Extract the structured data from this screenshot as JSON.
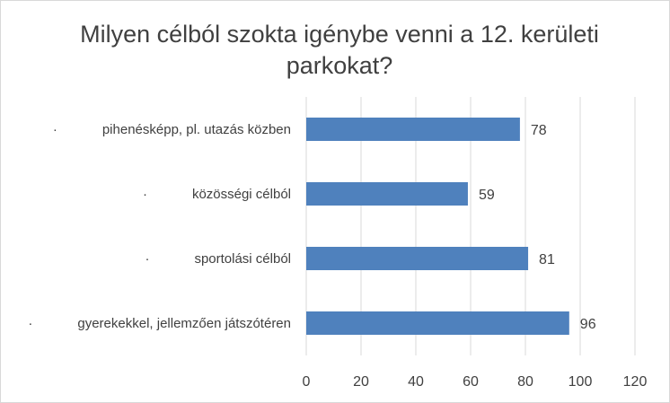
{
  "chart_data": {
    "type": "bar",
    "orientation": "horizontal",
    "title_lines": [
      "Milyen célból szokta igénybe venni a 12. kerületi",
      "parkokat?"
    ],
    "categories": [
      "pihenésképp, pl. utazás közben",
      "közösségi célból",
      "sportolási célból",
      "gyerekekkel, jellemzően játszótéren"
    ],
    "bullet": "·",
    "values": [
      78,
      59,
      81,
      96
    ],
    "data_labels": [
      "78",
      "59",
      "81",
      "96"
    ],
    "xlim": [
      0,
      120
    ],
    "xticks": [
      "0",
      "20",
      "40",
      "60",
      "80",
      "100",
      "120"
    ],
    "grid": true,
    "legend": "none",
    "bar_color": "#4f81bd",
    "gridline_color": "#d9d9d9"
  }
}
